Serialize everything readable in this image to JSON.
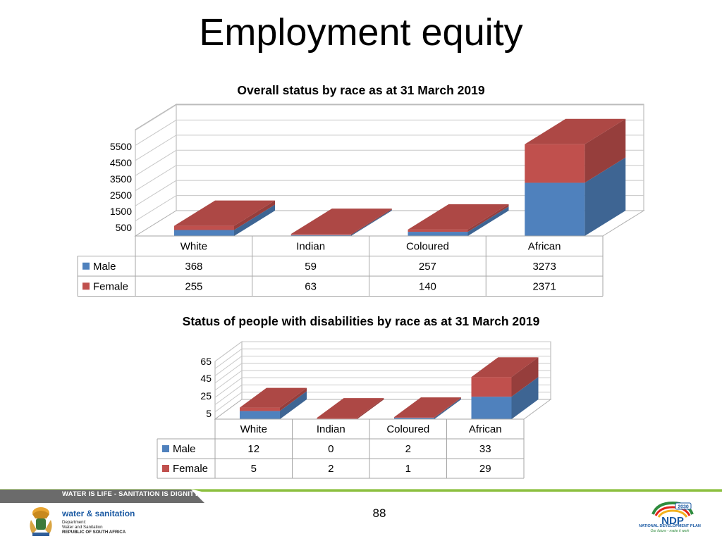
{
  "slide": {
    "title": "Employment equity",
    "page_number": "88"
  },
  "colors": {
    "male": "#4f81bd",
    "female": "#c0504d"
  },
  "chart_data": [
    {
      "type": "bar",
      "stacked": true,
      "three_d": true,
      "title": "Overall status by race as at 31 March 2019",
      "categories": [
        "White",
        "Indian",
        "Coloured",
        "African"
      ],
      "series": [
        {
          "name": "Male",
          "values": [
            368,
            59,
            257,
            3273
          ]
        },
        {
          "name": "Female",
          "values": [
            255,
            63,
            140,
            2371
          ]
        }
      ],
      "yticks": [
        "5500",
        "4500",
        "3500",
        "2500",
        "1500",
        "500"
      ],
      "ylim": [
        0,
        6500
      ],
      "grid": true,
      "data_table": true
    },
    {
      "type": "bar",
      "stacked": true,
      "three_d": true,
      "title": "Status of people with disabilities by race as at 31 March 2019",
      "categories": [
        "White",
        "Indian",
        "Coloured",
        "African"
      ],
      "series": [
        {
          "name": "Male",
          "values": [
            12,
            0,
            2,
            33
          ]
        },
        {
          "name": "Female",
          "values": [
            5,
            2,
            1,
            29
          ]
        }
      ],
      "yticks": [
        "65",
        "45",
        "25",
        "5"
      ],
      "ylim": [
        0,
        85
      ],
      "grid": true,
      "data_table": true
    }
  ],
  "footer": {
    "band_text": "WATER IS LIFE - SANITATION IS DIGNITY",
    "department_name": "water & sanitation",
    "department_lines": [
      "Department:",
      "Water and Sanitation",
      "REPUBLIC OF SOUTH AFRICA"
    ],
    "ndp_badge": "2030",
    "ndp_logo_text": "NDP",
    "ndp_name": "NATIONAL DEVELOPMENT PLAN",
    "ndp_tagline": "Our future - make it work"
  }
}
